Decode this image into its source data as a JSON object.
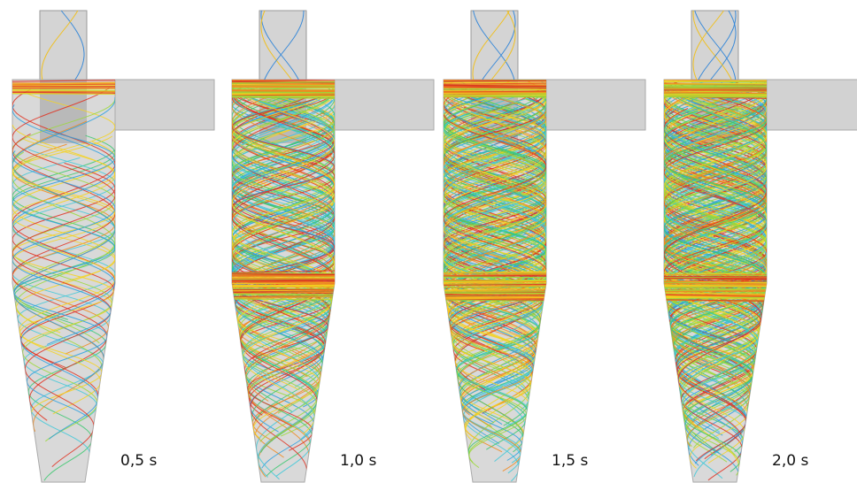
{
  "panels": [
    {
      "label": "0,5 s"
    },
    {
      "label": "1,0 s"
    },
    {
      "label": "1,5 s"
    },
    {
      "label": "2,0 s"
    }
  ]
}
